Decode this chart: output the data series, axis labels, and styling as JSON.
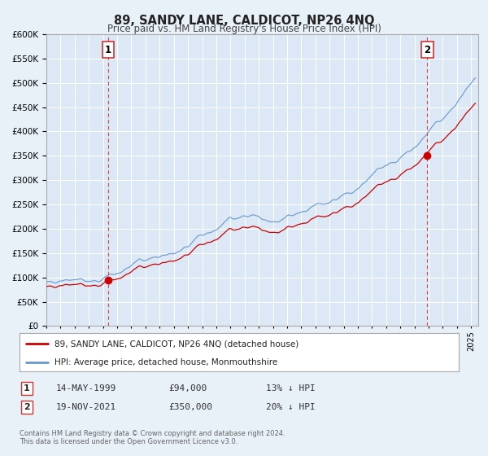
{
  "title": "89, SANDY LANE, CALDICOT, NP26 4NQ",
  "subtitle": "Price paid vs. HM Land Registry's House Price Index (HPI)",
  "ylim": [
    0,
    600000
  ],
  "yticks": [
    0,
    50000,
    100000,
    150000,
    200000,
    250000,
    300000,
    350000,
    400000,
    450000,
    500000,
    550000,
    600000
  ],
  "xlim_start": 1995.0,
  "xlim_end": 2025.5,
  "sale1_year": 1999.37,
  "sale1_price": 94000,
  "sale1_label": "1",
  "sale2_year": 2021.89,
  "sale2_price": 350000,
  "sale2_label": "2",
  "legend_line1": "89, SANDY LANE, CALDICOT, NP26 4NQ (detached house)",
  "legend_line2": "HPI: Average price, detached house, Monmouthshire",
  "table_row1": [
    "1",
    "14-MAY-1999",
    "£94,000",
    "13% ↓ HPI"
  ],
  "table_row2": [
    "2",
    "19-NOV-2021",
    "£350,000",
    "20% ↓ HPI"
  ],
  "footnote1": "Contains HM Land Registry data © Crown copyright and database right 2024.",
  "footnote2": "This data is licensed under the Open Government Licence v3.0.",
  "bg_color": "#e8f0f8",
  "plot_bg_color": "#dce8f5",
  "grid_color": "#ffffff",
  "red_line_color": "#cc0000",
  "dashed_line_color": "#dd4444",
  "hpi_color": "#6699cc"
}
